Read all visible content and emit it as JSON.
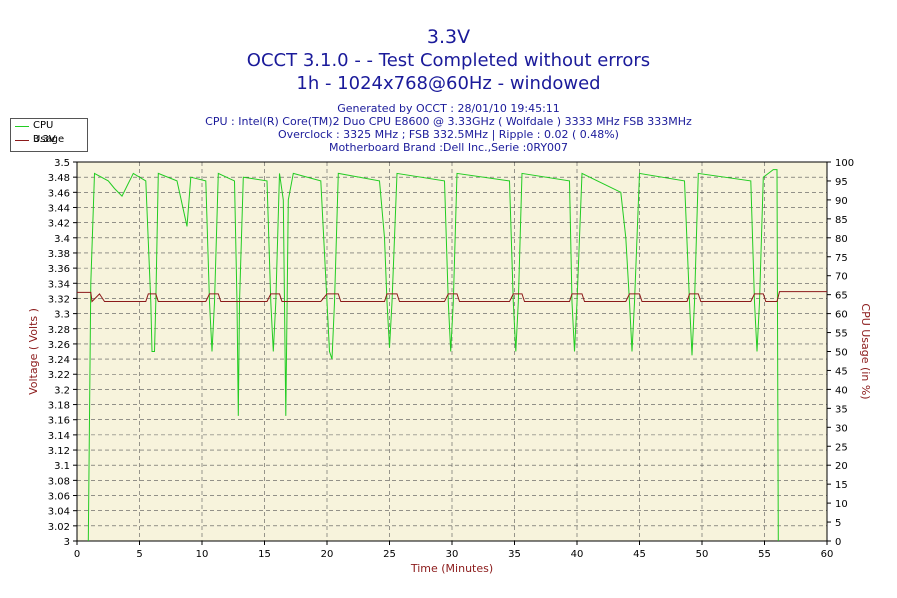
{
  "header": {
    "title_line1": "3.3V",
    "title_line2": "OCCT 3.1.0 -  - Test Completed without errors",
    "title_line3": "1h - 1024x768@60Hz - windowed",
    "info_line1": "Generated by OCCT : 28/01/10 19:45:11",
    "info_line2": "CPU : Intel(R) Core(TM)2 Duo CPU E8600 @ 3.33GHz ( Wolfdale ) 3333 MHz FSB 333MHz",
    "info_line3": "Overclock : 3325 MHz ; FSB 332.5MHz | Ripple : 0.02 ( 0.48%)",
    "info_line4": "Motherboard Brand :Dell Inc.,Serie :0RY007"
  },
  "legend": [
    {
      "label": "CPU Usage",
      "color": "#22cc22"
    },
    {
      "label": "3.3V",
      "color": "#8b1a1a"
    }
  ],
  "chart_data": {
    "type": "line",
    "xlabel": "Time (Minutes)",
    "ylabel_left": "Voltage ( Volts )",
    "ylabel_right": "CPU Usage (in %)",
    "xlim": [
      0,
      60
    ],
    "ylim_left": [
      3.0,
      3.5
    ],
    "ylim_right": [
      0,
      100
    ],
    "x_ticks": [
      0,
      5,
      10,
      15,
      20,
      25,
      30,
      35,
      40,
      45,
      50,
      55,
      60
    ],
    "y_left_ticks": [
      "3",
      "3.02",
      "3.04",
      "3.06",
      "3.08",
      "3.1",
      "3.12",
      "3.14",
      "3.16",
      "3.18",
      "3.2",
      "3.22",
      "3.24",
      "3.26",
      "3.28",
      "3.3",
      "3.32",
      "3.34",
      "3.36",
      "3.38",
      "3.4",
      "3.42",
      "3.44",
      "3.46",
      "3.48",
      "3.5"
    ],
    "y_right_ticks": [
      0,
      5,
      10,
      15,
      20,
      25,
      30,
      35,
      40,
      45,
      50,
      55,
      60,
      65,
      70,
      75,
      80,
      85,
      90,
      95,
      100
    ],
    "grid": true,
    "series": [
      {
        "name": "CPU Usage",
        "axis": "right",
        "color": "#22cc22",
        "points": [
          [
            0,
            null
          ],
          [
            0.9,
            0
          ],
          [
            1.1,
            68
          ],
          [
            1.4,
            97
          ],
          [
            2.5,
            95
          ],
          [
            3.0,
            93
          ],
          [
            3.6,
            91
          ],
          [
            4.5,
            97
          ],
          [
            5.5,
            95
          ],
          [
            5.9,
            63
          ],
          [
            6.0,
            50
          ],
          [
            6.2,
            50
          ],
          [
            6.3,
            63
          ],
          [
            6.5,
            97
          ],
          [
            8.0,
            95
          ],
          [
            8.8,
            83
          ],
          [
            9.1,
            96
          ],
          [
            10.3,
            95
          ],
          [
            10.6,
            63
          ],
          [
            10.8,
            50
          ],
          [
            11.0,
            63
          ],
          [
            11.3,
            97
          ],
          [
            12.6,
            95
          ],
          [
            12.8,
            63
          ],
          [
            12.9,
            33
          ],
          [
            13.0,
            63
          ],
          [
            13.3,
            96
          ],
          [
            15.2,
            95
          ],
          [
            15.5,
            63
          ],
          [
            15.7,
            50
          ],
          [
            15.9,
            63
          ],
          [
            16.2,
            97
          ],
          [
            16.5,
            90
          ],
          [
            16.7,
            33
          ],
          [
            16.9,
            90
          ],
          [
            17.3,
            97
          ],
          [
            19.5,
            95
          ],
          [
            20.0,
            63
          ],
          [
            20.2,
            50
          ],
          [
            20.4,
            48
          ],
          [
            20.6,
            63
          ],
          [
            20.9,
            97
          ],
          [
            24.2,
            95
          ],
          [
            24.6,
            80
          ],
          [
            24.8,
            63
          ],
          [
            25.0,
            51
          ],
          [
            25.2,
            63
          ],
          [
            25.6,
            97
          ],
          [
            29.4,
            95
          ],
          [
            29.7,
            63
          ],
          [
            29.9,
            50
          ],
          [
            30.1,
            63
          ],
          [
            30.4,
            97
          ],
          [
            34.6,
            95
          ],
          [
            34.9,
            63
          ],
          [
            35.1,
            50
          ],
          [
            35.3,
            63
          ],
          [
            35.6,
            97
          ],
          [
            39.4,
            95
          ],
          [
            39.6,
            63
          ],
          [
            39.8,
            50
          ],
          [
            40.0,
            63
          ],
          [
            40.4,
            97
          ],
          [
            43.5,
            92
          ],
          [
            43.9,
            80
          ],
          [
            44.2,
            63
          ],
          [
            44.4,
            50
          ],
          [
            44.6,
            63
          ],
          [
            45.0,
            97
          ],
          [
            48.6,
            95
          ],
          [
            49.0,
            63
          ],
          [
            49.2,
            49
          ],
          [
            49.4,
            63
          ],
          [
            49.7,
            97
          ],
          [
            53.9,
            95
          ],
          [
            54.2,
            63
          ],
          [
            54.4,
            50
          ],
          [
            54.6,
            63
          ],
          [
            54.9,
            96
          ],
          [
            55.7,
            98
          ],
          [
            56.0,
            98
          ],
          [
            56.1,
            0
          ]
        ]
      },
      {
        "name": "3.3V",
        "axis": "left",
        "color": "#8b1a1a",
        "points": [
          [
            0,
            3.328
          ],
          [
            1.1,
            3.328
          ],
          [
            1.2,
            3.316
          ],
          [
            1.8,
            3.326
          ],
          [
            2.2,
            3.316
          ],
          [
            5.5,
            3.316
          ],
          [
            5.7,
            3.326
          ],
          [
            6.3,
            3.326
          ],
          [
            6.5,
            3.316
          ],
          [
            10.3,
            3.316
          ],
          [
            10.6,
            3.326
          ],
          [
            11.3,
            3.326
          ],
          [
            11.5,
            3.316
          ],
          [
            15.2,
            3.316
          ],
          [
            15.5,
            3.326
          ],
          [
            16.2,
            3.326
          ],
          [
            16.4,
            3.316
          ],
          [
            19.5,
            3.316
          ],
          [
            20.0,
            3.326
          ],
          [
            20.9,
            3.326
          ],
          [
            21.1,
            3.316
          ],
          [
            24.6,
            3.316
          ],
          [
            24.8,
            3.326
          ],
          [
            25.6,
            3.326
          ],
          [
            25.8,
            3.316
          ],
          [
            29.4,
            3.316
          ],
          [
            29.7,
            3.326
          ],
          [
            30.4,
            3.326
          ],
          [
            30.6,
            3.316
          ],
          [
            34.6,
            3.316
          ],
          [
            34.9,
            3.326
          ],
          [
            35.6,
            3.326
          ],
          [
            35.8,
            3.316
          ],
          [
            39.4,
            3.316
          ],
          [
            39.6,
            3.326
          ],
          [
            40.4,
            3.326
          ],
          [
            40.6,
            3.316
          ],
          [
            43.9,
            3.316
          ],
          [
            44.2,
            3.326
          ],
          [
            45.0,
            3.326
          ],
          [
            45.2,
            3.316
          ],
          [
            48.8,
            3.316
          ],
          [
            49.0,
            3.326
          ],
          [
            49.7,
            3.326
          ],
          [
            49.9,
            3.316
          ],
          [
            53.9,
            3.316
          ],
          [
            54.2,
            3.326
          ],
          [
            54.9,
            3.326
          ],
          [
            55.1,
            3.316
          ],
          [
            56.0,
            3.316
          ],
          [
            56.2,
            3.329
          ],
          [
            60,
            3.329
          ]
        ]
      }
    ]
  }
}
